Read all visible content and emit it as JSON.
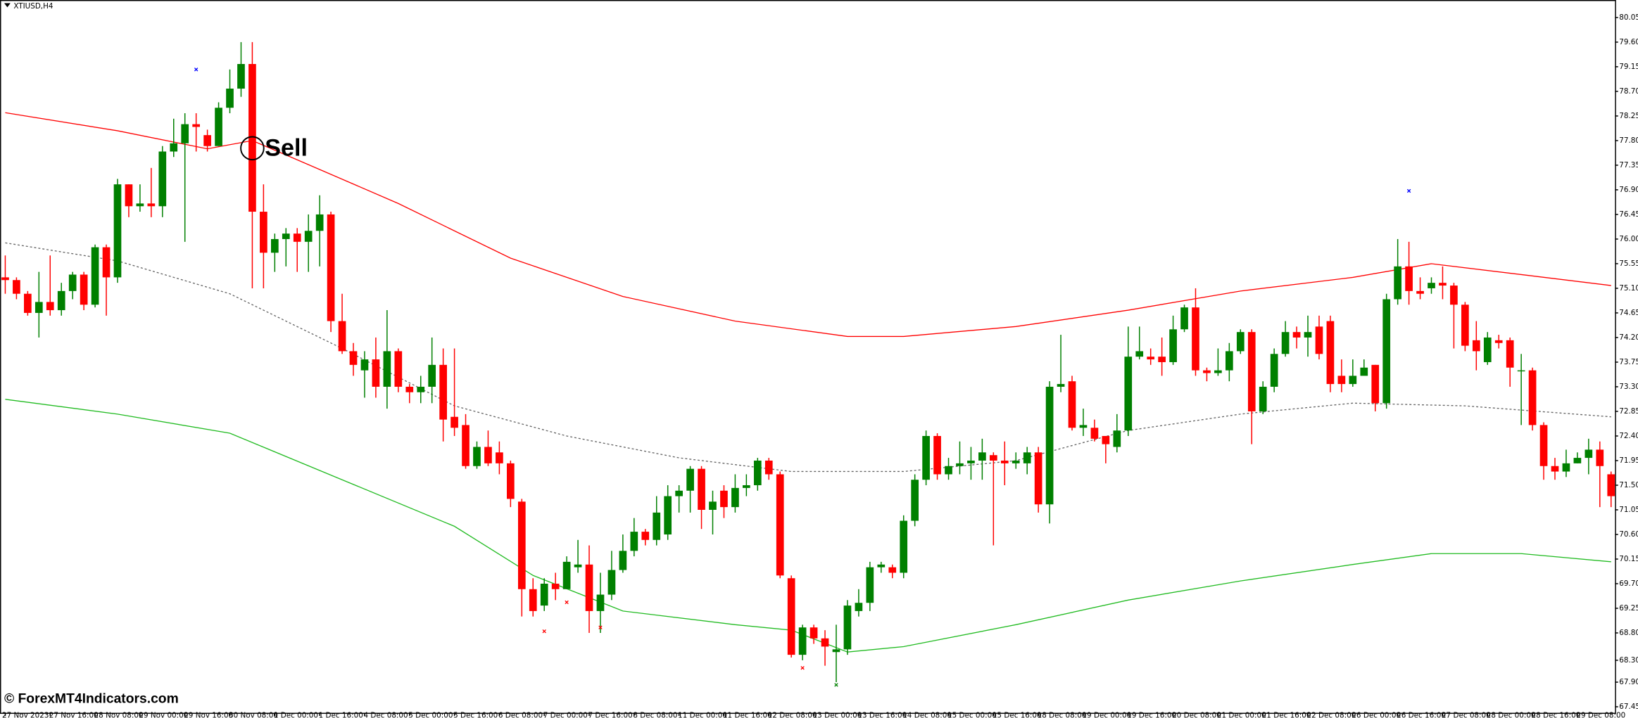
{
  "chart_data": {
    "type": "candlestick",
    "title": "XTIUSD,H4",
    "watermark": "© ForexMT4Indicators.com",
    "up_color": "#008000",
    "down_color": "#ff0000",
    "ylim": [
      67.34,
      80.37
    ],
    "yticks": [
      80.05,
      {
        "value": 79.6,
        "label": "79.60"
      },
      79.15,
      {
        "value": 78.7,
        "label": "78.70"
      },
      78.25,
      {
        "value": 77.8,
        "label": "77.80"
      },
      77.35,
      {
        "value": 76.9,
        "label": "76.90"
      },
      76.45,
      {
        "value": 76,
        "label": "76.00"
      },
      75.55,
      {
        "value": 75.1,
        "label": "75.10"
      },
      74.65,
      {
        "value": 74.2,
        "label": "74.20"
      },
      73.75,
      {
        "value": 73.3,
        "label": "73.30"
      },
      72.85,
      {
        "value": 72.4,
        "label": "72.40"
      },
      71.95,
      {
        "value": 71.5,
        "label": "71.50"
      },
      71.05,
      {
        "value": 70.6,
        "label": "70.60"
      },
      70.15,
      {
        "value": 69.7,
        "label": "69.70"
      },
      69.25,
      {
        "value": 68.8,
        "label": "68.80"
      },
      {
        "value": 68.3,
        "label": "68.30"
      },
      {
        "value": 67.9,
        "label": "67.90"
      },
      67.45
    ],
    "xtick_labels": [
      "27 Nov 2023",
      "27 Nov 16:00",
      "28 Nov 08:00",
      "29 Nov 00:00",
      "29 Nov 16:00",
      "30 Nov 08:00",
      "1 Dec 00:00",
      "1 Dec 16:00",
      "4 Dec 08:00",
      "5 Dec 00:00",
      "5 Dec 16:00",
      "6 Dec 08:00",
      "7 Dec 00:00",
      "7 Dec 16:00",
      "8 Dec 08:00",
      "11 Dec 00:00",
      "11 Dec 16:00",
      "12 Dec 08:00",
      "13 Dec 00:00",
      "13 Dec 16:00",
      "14 Dec 08:00",
      "15 Dec 00:00",
      "15 Dec 16:00",
      "18 Dec 08:00",
      "19 Dec 00:00",
      "19 Dec 16:00",
      "20 Dec 08:00",
      "21 Dec 00:00",
      "21 Dec 16:00",
      "22 Dec 08:00",
      "26 Dec 00:00",
      "26 Dec 16:00",
      "27 Dec 08:00",
      "28 Dec 00:00",
      "28 Dec 16:00",
      "29 Dec 08:00"
    ],
    "candles": [
      [
        75.3,
        75.7,
        75.0,
        75.25
      ],
      [
        75.25,
        75.3,
        74.9,
        75.0
      ],
      [
        75.0,
        75.05,
        74.6,
        74.65
      ],
      [
        74.65,
        75.4,
        74.2,
        74.85
      ],
      [
        74.85,
        75.7,
        74.6,
        74.7
      ],
      [
        74.7,
        75.2,
        74.6,
        75.05
      ],
      [
        75.05,
        75.4,
        74.9,
        75.35
      ],
      [
        75.35,
        75.4,
        74.7,
        74.8
      ],
      [
        74.8,
        75.9,
        74.75,
        75.85
      ],
      [
        75.85,
        75.9,
        74.6,
        75.3
      ],
      [
        75.3,
        77.1,
        75.2,
        77.0
      ],
      [
        77.0,
        77.0,
        76.4,
        76.6
      ],
      [
        76.6,
        77.0,
        76.5,
        76.65
      ],
      [
        76.65,
        77.3,
        76.4,
        76.6
      ],
      [
        76.6,
        77.7,
        76.4,
        77.6
      ],
      [
        77.6,
        78.2,
        77.5,
        77.75
      ],
      [
        77.75,
        78.3,
        75.95,
        78.1
      ],
      [
        78.1,
        78.3,
        77.6,
        78.05
      ],
      [
        77.9,
        78.0,
        77.6,
        77.7
      ],
      [
        77.7,
        78.5,
        77.7,
        78.4
      ],
      [
        78.4,
        79.1,
        78.3,
        78.75
      ],
      [
        78.75,
        79.6,
        78.6,
        79.2
      ],
      [
        79.2,
        79.6,
        75.1,
        76.5
      ],
      [
        76.5,
        77.0,
        75.1,
        75.75
      ],
      [
        75.75,
        76.1,
        75.4,
        76.0
      ],
      [
        76.0,
        76.2,
        75.5,
        76.1
      ],
      [
        76.1,
        76.2,
        75.4,
        75.95
      ],
      [
        75.95,
        76.45,
        75.4,
        76.15
      ],
      [
        76.15,
        76.8,
        75.5,
        76.45
      ],
      [
        76.45,
        76.5,
        74.3,
        74.5
      ],
      [
        74.5,
        75.0,
        73.9,
        73.95
      ],
      [
        73.95,
        74.1,
        73.5,
        73.7
      ],
      [
        73.6,
        73.95,
        73.1,
        73.8
      ],
      [
        73.8,
        74.2,
        73.1,
        73.3
      ],
      [
        73.3,
        74.7,
        72.9,
        73.95
      ],
      [
        73.95,
        74.0,
        73.2,
        73.3
      ],
      [
        73.3,
        73.35,
        73.0,
        73.2
      ],
      [
        73.2,
        73.5,
        73.0,
        73.3
      ],
      [
        73.3,
        74.2,
        73.0,
        73.7
      ],
      [
        73.7,
        74.0,
        72.3,
        72.7
      ],
      [
        72.75,
        74.0,
        72.4,
        72.55
      ],
      [
        72.6,
        72.8,
        71.8,
        71.85
      ],
      [
        71.85,
        72.3,
        71.8,
        72.2
      ],
      [
        72.2,
        72.5,
        71.85,
        71.9
      ],
      [
        72.1,
        72.3,
        71.7,
        71.9
      ],
      [
        71.9,
        71.95,
        71.1,
        71.25
      ],
      [
        71.2,
        71.25,
        69.1,
        69.6
      ],
      [
        69.6,
        69.8,
        69.1,
        69.2
      ],
      [
        69.3,
        69.8,
        69.2,
        69.7
      ],
      [
        69.7,
        69.9,
        69.4,
        69.6
      ],
      [
        69.6,
        70.2,
        69.6,
        70.1
      ],
      [
        70.0,
        70.5,
        69.9,
        70.05
      ],
      [
        70.05,
        70.4,
        68.8,
        69.2
      ],
      [
        69.2,
        69.9,
        68.8,
        69.5
      ],
      [
        69.5,
        70.3,
        69.4,
        69.95
      ],
      [
        69.95,
        70.6,
        69.9,
        70.3
      ],
      [
        70.3,
        70.9,
        70.2,
        70.65
      ],
      [
        70.65,
        70.7,
        70.4,
        70.5
      ],
      [
        70.5,
        71.3,
        70.4,
        71.0
      ],
      [
        70.6,
        71.5,
        70.5,
        71.3
      ],
      [
        71.3,
        71.5,
        71.0,
        71.4
      ],
      [
        71.4,
        71.85,
        71.0,
        71.8
      ],
      [
        71.8,
        71.85,
        70.7,
        71.05
      ],
      [
        71.05,
        71.4,
        70.6,
        71.2
      ],
      [
        71.4,
        71.5,
        70.9,
        71.1
      ],
      [
        71.1,
        71.7,
        71.0,
        71.45
      ],
      [
        71.45,
        71.7,
        71.3,
        71.5
      ],
      [
        71.5,
        72.0,
        71.4,
        71.95
      ],
      [
        71.95,
        72.0,
        71.6,
        71.7
      ],
      [
        71.7,
        71.75,
        69.8,
        69.85
      ],
      [
        69.8,
        69.85,
        68.35,
        68.4
      ],
      [
        68.4,
        68.95,
        68.3,
        68.9
      ],
      [
        68.9,
        68.95,
        68.6,
        68.7
      ],
      [
        68.7,
        68.85,
        68.2,
        68.55
      ],
      [
        68.45,
        68.95,
        67.9,
        68.5
      ],
      [
        68.5,
        69.4,
        68.4,
        69.3
      ],
      [
        69.2,
        69.6,
        69.1,
        69.35
      ],
      [
        69.35,
        70.1,
        69.2,
        70.0
      ],
      [
        70.0,
        70.1,
        69.9,
        70.05
      ],
      [
        70.0,
        70.05,
        69.8,
        69.9
      ],
      [
        69.9,
        70.95,
        69.8,
        70.85
      ],
      [
        70.85,
        71.7,
        70.75,
        71.6
      ],
      [
        71.6,
        72.5,
        71.5,
        72.4
      ],
      [
        72.4,
        72.45,
        71.6,
        71.7
      ],
      [
        71.7,
        72.0,
        71.6,
        71.85
      ],
      [
        71.85,
        72.3,
        71.7,
        71.9
      ],
      [
        71.9,
        72.2,
        71.6,
        71.95
      ],
      [
        71.95,
        72.35,
        71.6,
        72.1
      ],
      [
        72.05,
        72.1,
        70.4,
        71.95
      ],
      [
        71.95,
        72.3,
        71.5,
        71.9
      ],
      [
        71.9,
        72.1,
        71.8,
        71.95
      ],
      [
        71.9,
        72.2,
        71.7,
        72.1
      ],
      [
        72.1,
        72.2,
        71.0,
        71.15
      ],
      [
        71.15,
        73.4,
        70.8,
        73.3
      ],
      [
        73.3,
        74.25,
        73.2,
        73.35
      ],
      [
        73.4,
        73.5,
        72.5,
        72.55
      ],
      [
        72.55,
        72.9,
        72.4,
        72.6
      ],
      [
        72.55,
        72.7,
        72.3,
        72.35
      ],
      [
        72.4,
        72.4,
        71.9,
        72.25
      ],
      [
        72.2,
        72.8,
        72.1,
        72.5
      ],
      [
        72.5,
        74.4,
        72.4,
        73.85
      ],
      [
        73.85,
        74.4,
        73.8,
        73.95
      ],
      [
        73.85,
        74.0,
        73.7,
        73.8
      ],
      [
        73.85,
        74.2,
        73.5,
        73.75
      ],
      [
        73.75,
        74.6,
        73.7,
        74.35
      ],
      [
        74.35,
        74.8,
        74.3,
        74.75
      ],
      [
        74.75,
        75.1,
        73.5,
        73.6
      ],
      [
        73.6,
        73.65,
        73.4,
        73.55
      ],
      [
        73.55,
        74.0,
        73.5,
        73.6
      ],
      [
        73.6,
        74.1,
        73.4,
        73.95
      ],
      [
        73.95,
        74.35,
        73.9,
        74.3
      ],
      [
        74.3,
        74.35,
        72.25,
        72.85
      ],
      [
        72.85,
        73.4,
        72.8,
        73.3
      ],
      [
        73.3,
        74.0,
        73.2,
        73.9
      ],
      [
        73.9,
        74.5,
        73.85,
        74.3
      ],
      [
        74.3,
        74.4,
        74.0,
        74.2
      ],
      [
        74.2,
        74.6,
        73.85,
        74.3
      ],
      [
        74.4,
        74.6,
        73.8,
        73.9
      ],
      [
        74.5,
        74.6,
        73.2,
        73.35
      ],
      [
        73.5,
        73.8,
        73.2,
        73.35
      ],
      [
        73.35,
        73.8,
        73.3,
        73.5
      ],
      [
        73.5,
        73.8,
        73.6,
        73.65
      ],
      [
        73.7,
        73.7,
        72.85,
        73.0
      ],
      [
        73.0,
        75.0,
        72.9,
        74.9
      ],
      [
        74.9,
        76.0,
        74.8,
        75.5
      ],
      [
        75.5,
        75.95,
        74.8,
        75.05
      ],
      [
        75.05,
        75.3,
        74.9,
        75.0
      ],
      [
        75.1,
        75.3,
        75.0,
        75.2
      ],
      [
        75.2,
        75.5,
        74.9,
        75.15
      ],
      [
        75.15,
        75.2,
        74.0,
        74.8
      ],
      [
        74.8,
        74.85,
        73.95,
        74.05
      ],
      [
        74.15,
        74.5,
        73.6,
        73.95
      ],
      [
        73.75,
        74.3,
        73.7,
        74.2
      ],
      [
        74.15,
        74.25,
        74.0,
        74.1
      ],
      [
        74.15,
        74.2,
        73.3,
        73.65
      ],
      [
        73.6,
        73.9,
        72.6,
        73.6
      ],
      [
        73.6,
        73.65,
        72.5,
        72.6
      ],
      [
        72.6,
        72.65,
        71.6,
        71.85
      ],
      [
        71.85,
        72.0,
        71.6,
        71.75
      ],
      [
        71.75,
        72.15,
        71.65,
        71.9
      ],
      [
        71.9,
        72.1,
        71.9,
        72.0
      ],
      [
        72.0,
        72.35,
        71.7,
        72.15
      ],
      [
        72.15,
        72.3,
        71.1,
        71.85
      ],
      [
        71.7,
        71.75,
        71.1,
        71.3
      ]
    ],
    "lines": [
      {
        "color": "#ff0000",
        "dash": false,
        "x": [
          0,
          10,
          18,
          22,
          26,
          35,
          45,
          55,
          65,
          75,
          80,
          90,
          100,
          110,
          120,
          127,
          135,
          143
        ],
        "values": [
          78.31,
          77.98,
          77.65,
          77.8,
          77.45,
          76.65,
          75.65,
          74.95,
          74.5,
          74.22,
          74.22,
          74.4,
          74.7,
          75.05,
          75.3,
          75.55,
          75.35,
          75.15
        ]
      },
      {
        "color": "#666666",
        "dash": true,
        "x": [
          0,
          10,
          20,
          30,
          40,
          50,
          60,
          70,
          80,
          90,
          100,
          110,
          120,
          130,
          143
        ],
        "values": [
          75.93,
          75.6,
          75.0,
          74.0,
          72.95,
          72.4,
          72.0,
          71.75,
          71.75,
          71.95,
          72.5,
          72.8,
          73.0,
          72.95,
          72.75
        ]
      },
      {
        "color": "#22bb22",
        "dash": false,
        "x": [
          0,
          10,
          20,
          30,
          40,
          47,
          55,
          65,
          70,
          75,
          80,
          90,
          100,
          110,
          120,
          127,
          135,
          143
        ],
        "values": [
          73.07,
          72.8,
          72.45,
          71.6,
          70.75,
          69.85,
          69.2,
          68.95,
          68.85,
          68.45,
          68.55,
          68.95,
          69.4,
          69.75,
          70.05,
          70.25,
          70.25,
          70.1
        ]
      }
    ],
    "markers": [
      {
        "index": 17,
        "price": 79.1,
        "color": "#0000ff"
      },
      {
        "index": 125,
        "price": 76.88,
        "color": "#0000ff"
      },
      {
        "index": 48,
        "price": 68.83,
        "color": "#ff0000"
      },
      {
        "index": 50,
        "price": 69.36,
        "color": "#ff0000"
      },
      {
        "index": 53,
        "price": 68.9,
        "color": "#ff0000"
      },
      {
        "index": 71,
        "price": 68.16,
        "color": "#ff0000"
      },
      {
        "index": 74,
        "price": 67.85,
        "color": "#008000"
      }
    ],
    "annotation": {
      "text": "Sell",
      "index": 22,
      "price": 77.66
    }
  }
}
